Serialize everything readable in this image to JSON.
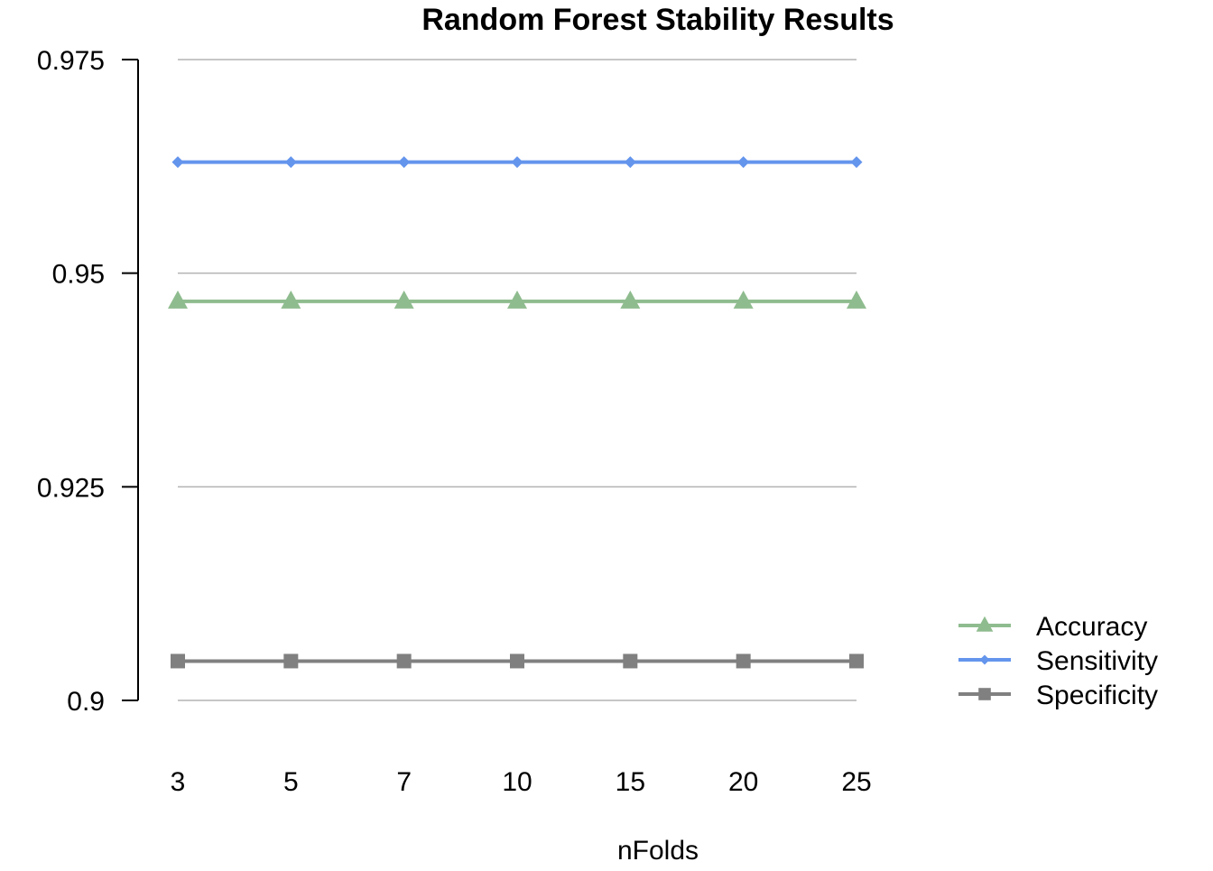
{
  "chart_data": {
    "type": "line",
    "title": "Random Forest Stability Results",
    "xlabel": "nFolds",
    "ylabel": "",
    "categories": [
      "3",
      "5",
      "7",
      "10",
      "15",
      "20",
      "25"
    ],
    "ylim": [
      0.9,
      0.975
    ],
    "yticks": [
      "0.975",
      "0.95",
      "0.925",
      "0.9"
    ],
    "grid": true,
    "legend_position": "right",
    "series": [
      {
        "name": "Accuracy",
        "color": "#8fbc8f",
        "marker": "triangle",
        "values": [
          0.9467,
          0.9467,
          0.9467,
          0.9467,
          0.9467,
          0.9467,
          0.9467
        ]
      },
      {
        "name": "Sensitivity",
        "color": "#6495ed",
        "marker": "diamond",
        "values": [
          0.963,
          0.963,
          0.963,
          0.963,
          0.963,
          0.963,
          0.963
        ]
      },
      {
        "name": "Specificity",
        "color": "#808080",
        "marker": "square",
        "values": [
          0.9046,
          0.9046,
          0.9046,
          0.9046,
          0.9046,
          0.9046,
          0.9046
        ]
      }
    ]
  }
}
